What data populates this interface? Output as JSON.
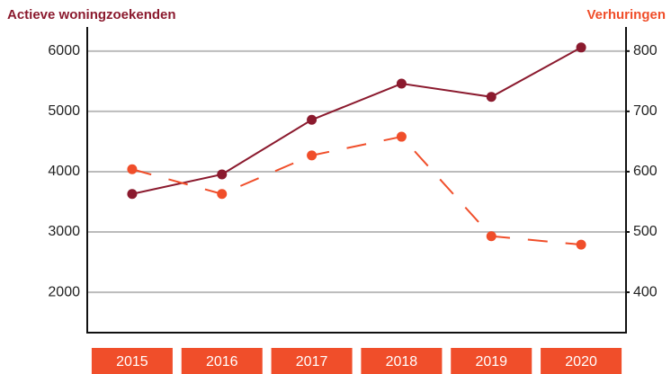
{
  "chart_data": {
    "type": "line",
    "y_label": "Actieve woningzoekenden",
    "y2_label": "Verhuringen",
    "categories": [
      "2015",
      "2016",
      "2017",
      "2018",
      "2019",
      "2020"
    ],
    "series": [
      {
        "name": "Actieve woningzoekenden",
        "color": "#8b1a2e",
        "values": [
          3630,
          3955,
          4860,
          5460,
          5240,
          6060
        ]
      },
      {
        "name": "Verhuringen",
        "color": "#f04e2a",
        "axis": "y2",
        "dashed": true,
        "values": [
          604,
          563,
          627,
          658,
          493,
          479
        ]
      }
    ],
    "ylim": [
      1330,
      6400
    ],
    "yticks": [
      2000,
      3000,
      4000,
      5000,
      6000
    ],
    "y2lim": [
      333,
      840
    ],
    "y2ticks": [
      400,
      500,
      600,
      700,
      800
    ],
    "grid": true
  }
}
